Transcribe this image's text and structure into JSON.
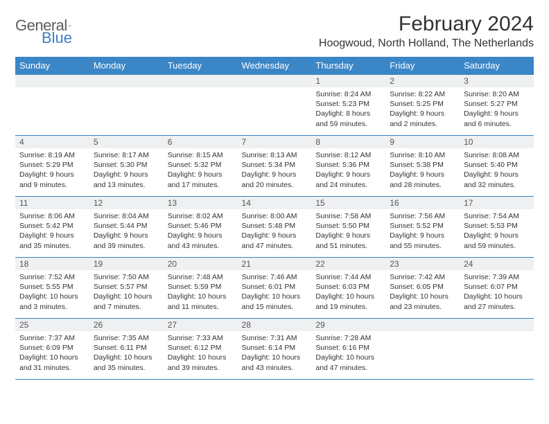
{
  "brand": {
    "part1": "General",
    "part2": "Blue"
  },
  "title": "February 2024",
  "location": "Hoogwoud, North Holland, The Netherlands",
  "colors": {
    "header_bg": "#3b86c7",
    "rule": "#3b7fc4",
    "daynum_bg": "#eef0f2",
    "text": "#333333",
    "logo_gray": "#5a5d60",
    "logo_blue": "#3b7fc4",
    "page_bg": "#ffffff"
  },
  "typography": {
    "title_fontsize": 30,
    "location_fontsize": 16,
    "header_fontsize": 13,
    "daynum_fontsize": 12,
    "cell_fontsize": 10.5
  },
  "weekdays": [
    "Sunday",
    "Monday",
    "Tuesday",
    "Wednesday",
    "Thursday",
    "Friday",
    "Saturday"
  ],
  "weeks": [
    [
      null,
      null,
      null,
      null,
      {
        "n": "1",
        "sunrise": "8:24 AM",
        "sunset": "5:23 PM",
        "daylight": "8 hours and 59 minutes."
      },
      {
        "n": "2",
        "sunrise": "8:22 AM",
        "sunset": "5:25 PM",
        "daylight": "9 hours and 2 minutes."
      },
      {
        "n": "3",
        "sunrise": "8:20 AM",
        "sunset": "5:27 PM",
        "daylight": "9 hours and 6 minutes."
      }
    ],
    [
      {
        "n": "4",
        "sunrise": "8:19 AM",
        "sunset": "5:29 PM",
        "daylight": "9 hours and 9 minutes."
      },
      {
        "n": "5",
        "sunrise": "8:17 AM",
        "sunset": "5:30 PM",
        "daylight": "9 hours and 13 minutes."
      },
      {
        "n": "6",
        "sunrise": "8:15 AM",
        "sunset": "5:32 PM",
        "daylight": "9 hours and 17 minutes."
      },
      {
        "n": "7",
        "sunrise": "8:13 AM",
        "sunset": "5:34 PM",
        "daylight": "9 hours and 20 minutes."
      },
      {
        "n": "8",
        "sunrise": "8:12 AM",
        "sunset": "5:36 PM",
        "daylight": "9 hours and 24 minutes."
      },
      {
        "n": "9",
        "sunrise": "8:10 AM",
        "sunset": "5:38 PM",
        "daylight": "9 hours and 28 minutes."
      },
      {
        "n": "10",
        "sunrise": "8:08 AM",
        "sunset": "5:40 PM",
        "daylight": "9 hours and 32 minutes."
      }
    ],
    [
      {
        "n": "11",
        "sunrise": "8:06 AM",
        "sunset": "5:42 PM",
        "daylight": "9 hours and 35 minutes."
      },
      {
        "n": "12",
        "sunrise": "8:04 AM",
        "sunset": "5:44 PM",
        "daylight": "9 hours and 39 minutes."
      },
      {
        "n": "13",
        "sunrise": "8:02 AM",
        "sunset": "5:46 PM",
        "daylight": "9 hours and 43 minutes."
      },
      {
        "n": "14",
        "sunrise": "8:00 AM",
        "sunset": "5:48 PM",
        "daylight": "9 hours and 47 minutes."
      },
      {
        "n": "15",
        "sunrise": "7:58 AM",
        "sunset": "5:50 PM",
        "daylight": "9 hours and 51 minutes."
      },
      {
        "n": "16",
        "sunrise": "7:56 AM",
        "sunset": "5:52 PM",
        "daylight": "9 hours and 55 minutes."
      },
      {
        "n": "17",
        "sunrise": "7:54 AM",
        "sunset": "5:53 PM",
        "daylight": "9 hours and 59 minutes."
      }
    ],
    [
      {
        "n": "18",
        "sunrise": "7:52 AM",
        "sunset": "5:55 PM",
        "daylight": "10 hours and 3 minutes."
      },
      {
        "n": "19",
        "sunrise": "7:50 AM",
        "sunset": "5:57 PM",
        "daylight": "10 hours and 7 minutes."
      },
      {
        "n": "20",
        "sunrise": "7:48 AM",
        "sunset": "5:59 PM",
        "daylight": "10 hours and 11 minutes."
      },
      {
        "n": "21",
        "sunrise": "7:46 AM",
        "sunset": "6:01 PM",
        "daylight": "10 hours and 15 minutes."
      },
      {
        "n": "22",
        "sunrise": "7:44 AM",
        "sunset": "6:03 PM",
        "daylight": "10 hours and 19 minutes."
      },
      {
        "n": "23",
        "sunrise": "7:42 AM",
        "sunset": "6:05 PM",
        "daylight": "10 hours and 23 minutes."
      },
      {
        "n": "24",
        "sunrise": "7:39 AM",
        "sunset": "6:07 PM",
        "daylight": "10 hours and 27 minutes."
      }
    ],
    [
      {
        "n": "25",
        "sunrise": "7:37 AM",
        "sunset": "6:09 PM",
        "daylight": "10 hours and 31 minutes."
      },
      {
        "n": "26",
        "sunrise": "7:35 AM",
        "sunset": "6:11 PM",
        "daylight": "10 hours and 35 minutes."
      },
      {
        "n": "27",
        "sunrise": "7:33 AM",
        "sunset": "6:12 PM",
        "daylight": "10 hours and 39 minutes."
      },
      {
        "n": "28",
        "sunrise": "7:31 AM",
        "sunset": "6:14 PM",
        "daylight": "10 hours and 43 minutes."
      },
      {
        "n": "29",
        "sunrise": "7:28 AM",
        "sunset": "6:16 PM",
        "daylight": "10 hours and 47 minutes."
      },
      null,
      null
    ]
  ],
  "labels": {
    "sunrise": "Sunrise:",
    "sunset": "Sunset:",
    "daylight": "Daylight:"
  }
}
